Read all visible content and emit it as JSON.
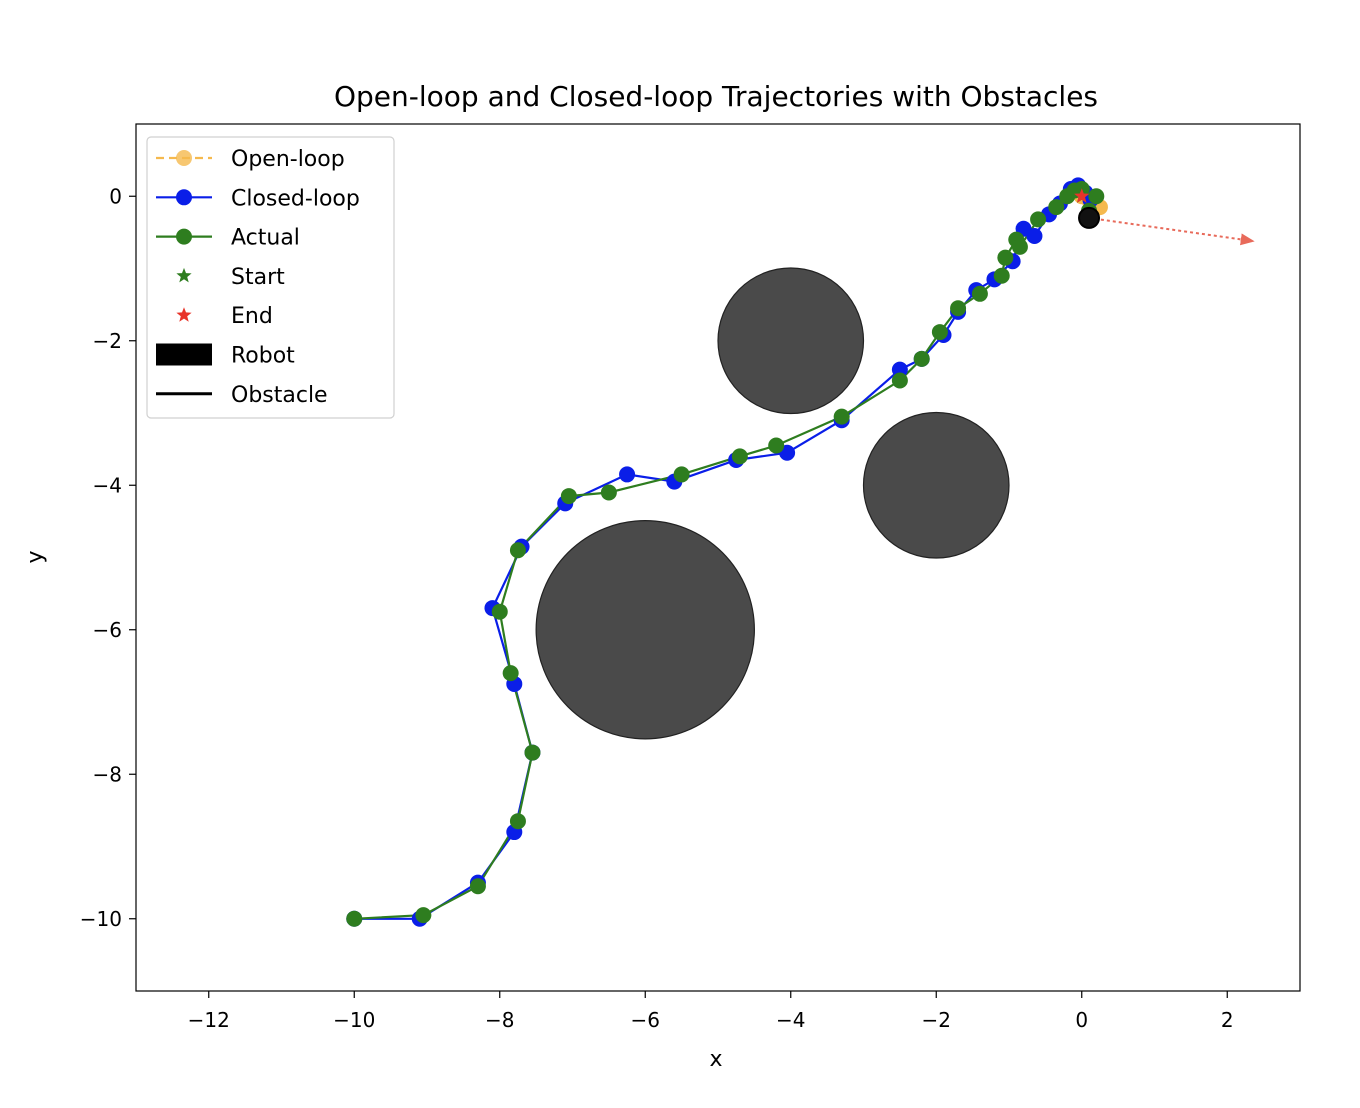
{
  "chart_data": {
    "type": "line",
    "title": "Open-loop and Closed-loop Trajectories with Obstacles",
    "xlabel": "x",
    "ylabel": "y",
    "xlim": [
      -13,
      3
    ],
    "ylim": [
      -11,
      1
    ],
    "xticks": [
      -12,
      -10,
      -8,
      -6,
      -4,
      -2,
      0,
      2
    ],
    "yticks": [
      0,
      -2,
      -4,
      -6,
      -8,
      -10
    ],
    "xtick_labels": [
      "−12",
      "−10",
      "−8",
      "−6",
      "−4",
      "−2",
      "0",
      "2"
    ],
    "ytick_labels": [
      "0",
      "−2",
      "−4",
      "−6",
      "−8",
      "−10"
    ],
    "grid": false,
    "legend_position": "top-left",
    "legend": [
      {
        "label": "Open-loop",
        "kind": "dashed-marker",
        "color": "#f5b94e"
      },
      {
        "label": "Closed-loop",
        "kind": "line-marker",
        "color": "#0a1ee8"
      },
      {
        "label": "Actual",
        "kind": "line-marker",
        "color": "#2e7d1f"
      },
      {
        "label": "Start",
        "kind": "star",
        "color": "#2e7d1f"
      },
      {
        "label": "End",
        "kind": "star",
        "color": "#e8342a"
      },
      {
        "label": "Robot",
        "kind": "patch",
        "color": "#000000"
      },
      {
        "label": "Obstacle",
        "kind": "line",
        "color": "#000000"
      }
    ],
    "obstacles": [
      {
        "cx": -4,
        "cy": -2,
        "r": 1,
        "color": "#4a4a4a"
      },
      {
        "cx": -2,
        "cy": -4,
        "r": 1,
        "color": "#4a4a4a"
      },
      {
        "cx": -6,
        "cy": -6,
        "r": 1.5,
        "color": "#4a4a4a"
      }
    ],
    "series": [
      {
        "key": "open-loop",
        "color": "#f5b94e",
        "x": [
          0.0,
          0.1,
          0.18,
          0.22,
          0.25
        ],
        "y": [
          0.0,
          -0.05,
          -0.1,
          -0.13,
          -0.15
        ]
      },
      {
        "key": "closed-loop",
        "color": "#0a1ee8",
        "x": [
          -10.0,
          -9.1,
          -8.3,
          -7.8,
          -7.55,
          -7.8,
          -8.1,
          -7.7,
          -7.1,
          -6.25,
          -5.6,
          -4.75,
          -4.05,
          -3.3,
          -2.5,
          -2.2,
          -1.9,
          -1.7,
          -1.45,
          -1.2,
          -0.95,
          -0.8,
          -0.65,
          -0.45,
          -0.3,
          -0.15,
          -0.05,
          0.05,
          0.12
        ],
        "y": [
          -10.0,
          -10.0,
          -9.5,
          -8.8,
          -7.7,
          -6.75,
          -5.7,
          -4.85,
          -4.25,
          -3.85,
          -3.95,
          -3.65,
          -3.55,
          -3.1,
          -2.4,
          -2.25,
          -1.92,
          -1.6,
          -1.3,
          -1.15,
          -0.9,
          -0.45,
          -0.55,
          -0.25,
          -0.1,
          0.1,
          0.15,
          0.05,
          -0.05
        ]
      },
      {
        "key": "actual",
        "color": "#2e7d1f",
        "x": [
          -10.0,
          -9.05,
          -8.3,
          -7.75,
          -7.55,
          -7.85,
          -8.0,
          -7.75,
          -7.05,
          -6.5,
          -5.5,
          -4.7,
          -4.2,
          -3.3,
          -2.5,
          -2.2,
          -1.95,
          -1.7,
          -1.4,
          -1.1,
          -1.05,
          -0.9,
          -0.85,
          -0.6,
          -0.35,
          -0.2,
          -0.1,
          0.0,
          0.2,
          0.1
        ],
        "y": [
          -10.0,
          -9.95,
          -9.55,
          -8.65,
          -7.7,
          -6.6,
          -5.75,
          -4.9,
          -4.15,
          -4.1,
          -3.85,
          -3.6,
          -3.45,
          -3.05,
          -2.55,
          -2.25,
          -1.88,
          -1.55,
          -1.35,
          -1.1,
          -0.85,
          -0.6,
          -0.7,
          -0.32,
          -0.15,
          0.0,
          0.08,
          0.1,
          0.0,
          -0.2
        ]
      }
    ],
    "start": {
      "x": 0.0,
      "y": 0.0
    },
    "end": {
      "x": 0.0,
      "y": 0.0
    },
    "robot": {
      "x": 0.1,
      "y": -0.3
    },
    "heading_arrow": {
      "x1": 0.1,
      "y1": -0.3,
      "x2": 2.35,
      "y2": -0.62,
      "color": "#e86a5a"
    }
  }
}
